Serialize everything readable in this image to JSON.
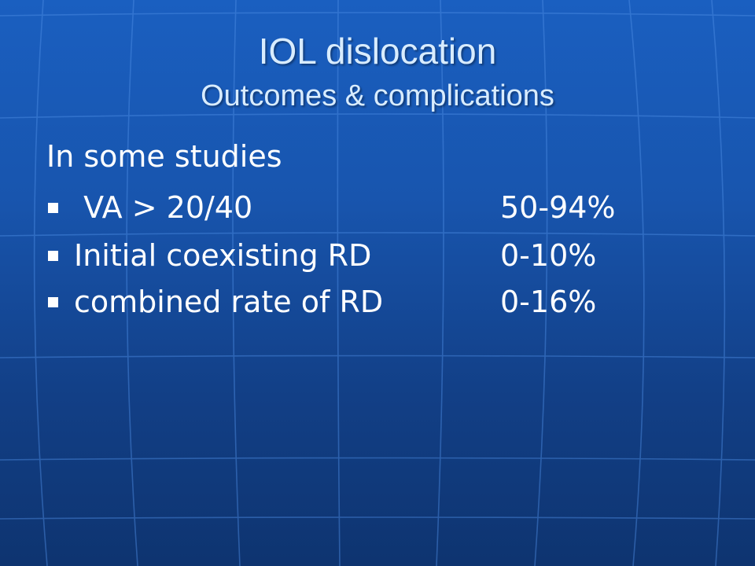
{
  "slide": {
    "title": "IOL dislocation",
    "subtitle": "Outcomes & complications",
    "intro": "In some studies",
    "items": [
      {
        "label": " VA > 20/40",
        "value": "50-94%"
      },
      {
        "label": "Initial coexisting RD",
        "value": "0-10%"
      },
      {
        "label": "combined rate of RD",
        "value": "0-16%"
      }
    ]
  },
  "colors": {
    "background": "#1a5fc0",
    "title": "#d8ecff",
    "body_text": "#ffffff"
  }
}
